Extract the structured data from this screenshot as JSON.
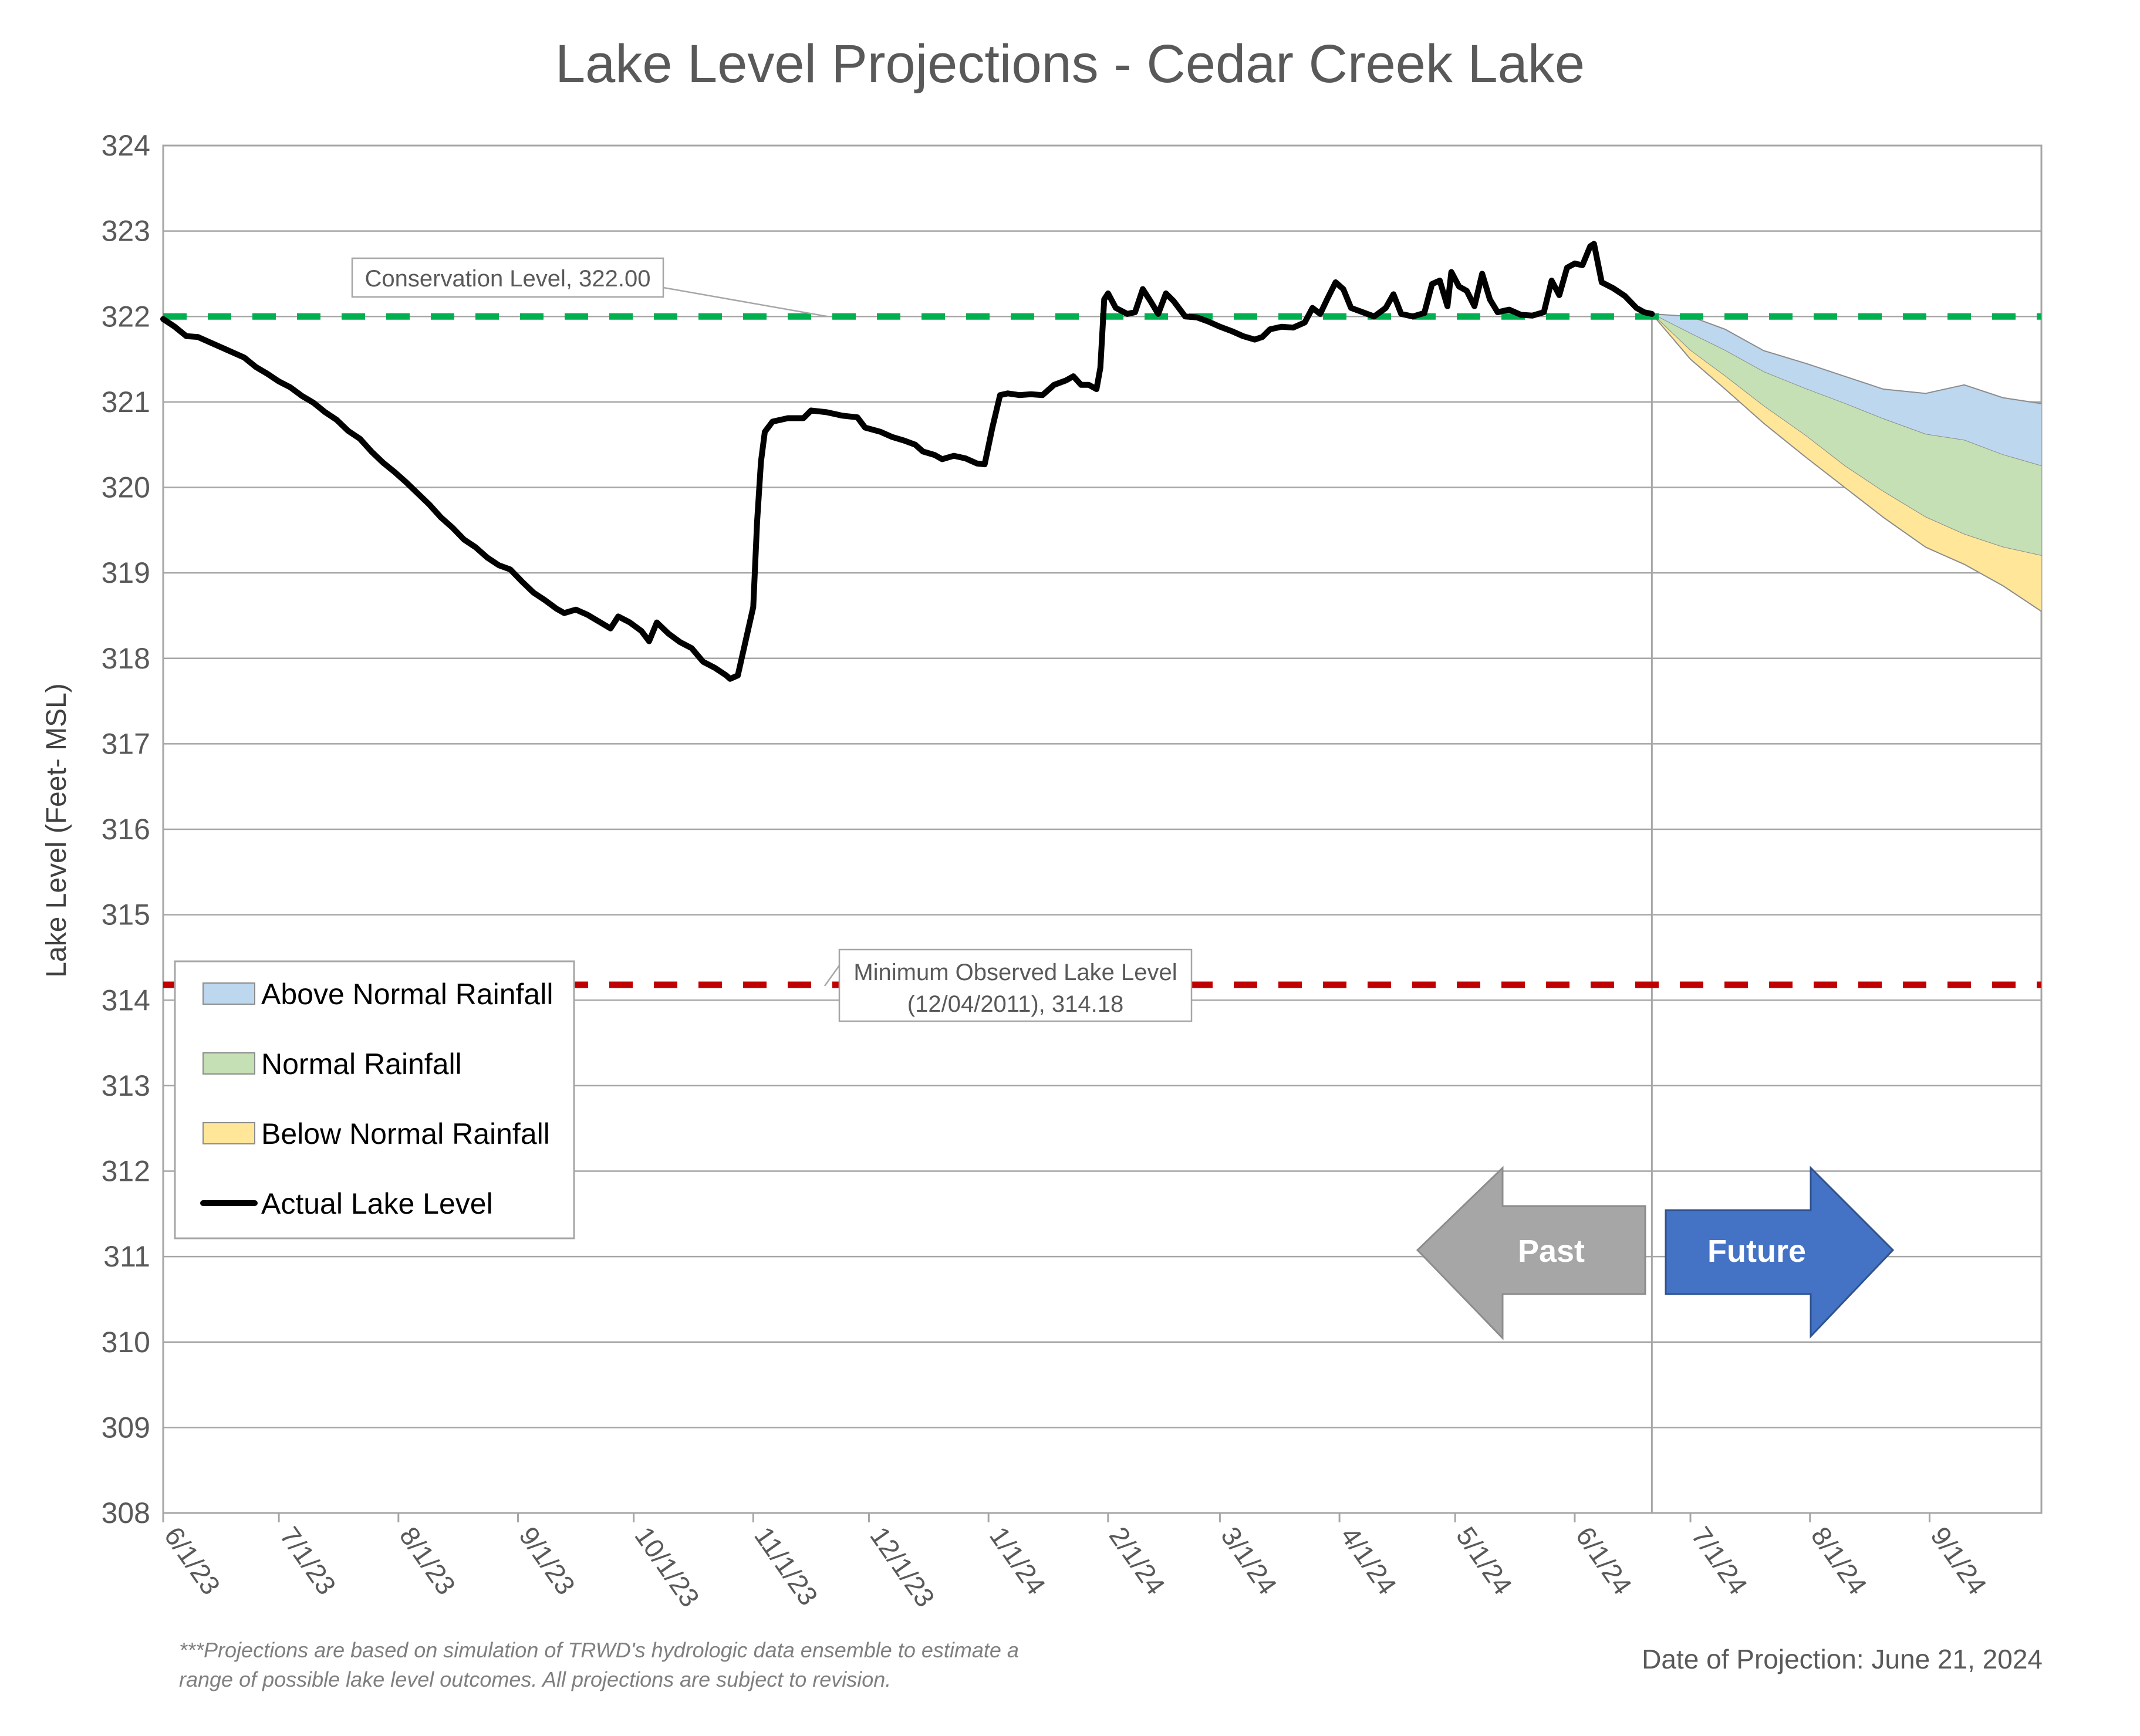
{
  "chart_data": {
    "type": "area",
    "title": "Lake Level Projections - Cedar Creek Lake",
    "ylabel": "Lake Level (Feet- MSL)",
    "xlabel": "",
    "ylim": [
      308,
      324
    ],
    "yticks": [
      "308",
      "309",
      "310",
      "311",
      "312",
      "313",
      "314",
      "315",
      "316",
      "317",
      "318",
      "319",
      "320",
      "321",
      "322",
      "323",
      "324"
    ],
    "x_range": [
      "2023-06-01",
      "2024-09-30"
    ],
    "xticks": [
      {
        "date": "2023-06-01",
        "label": "6/1/23"
      },
      {
        "date": "2023-07-01",
        "label": "7/1/23"
      },
      {
        "date": "2023-08-01",
        "label": "8/1/23"
      },
      {
        "date": "2023-09-01",
        "label": "9/1/23"
      },
      {
        "date": "2023-10-01",
        "label": "10/1/23"
      },
      {
        "date": "2023-11-01",
        "label": "11/1/23"
      },
      {
        "date": "2023-12-01",
        "label": "12/1/23"
      },
      {
        "date": "2024-01-01",
        "label": "1/1/24"
      },
      {
        "date": "2024-02-01",
        "label": "2/1/24"
      },
      {
        "date": "2024-03-01",
        "label": "3/1/24"
      },
      {
        "date": "2024-04-01",
        "label": "4/1/24"
      },
      {
        "date": "2024-05-01",
        "label": "5/1/24"
      },
      {
        "date": "2024-06-01",
        "label": "6/1/24"
      },
      {
        "date": "2024-07-01",
        "label": "7/1/24"
      },
      {
        "date": "2024-08-01",
        "label": "8/1/24"
      },
      {
        "date": "2024-09-01",
        "label": "9/1/24"
      }
    ],
    "grid": true,
    "reference_lines": [
      {
        "name": "Conservation Level",
        "value": 322.0,
        "color": "#00b050",
        "style": "dashed",
        "label": "Conservation Level, 322.00"
      },
      {
        "name": "Minimum Observed Lake Level",
        "value": 314.18,
        "color": "#c00000",
        "style": "dashed",
        "label_lines": [
          "Minimum Observed Lake Level",
          "(12/04/2011), 314.18"
        ]
      }
    ],
    "projection_date_marker": "2024-06-21",
    "actual_lake_level": {
      "name": "Actual Lake Level",
      "color": "#000000",
      "points": [
        [
          "2023-06-01",
          321.97
        ],
        [
          "2023-06-04",
          321.88
        ],
        [
          "2023-06-07",
          321.77
        ],
        [
          "2023-06-10",
          321.76
        ],
        [
          "2023-06-13",
          321.7
        ],
        [
          "2023-06-16",
          321.64
        ],
        [
          "2023-06-19",
          321.58
        ],
        [
          "2023-06-22",
          321.52
        ],
        [
          "2023-06-25",
          321.41
        ],
        [
          "2023-06-28",
          321.33
        ],
        [
          "2023-07-01",
          321.24
        ],
        [
          "2023-07-04",
          321.17
        ],
        [
          "2023-07-07",
          321.07
        ],
        [
          "2023-07-10",
          320.99
        ],
        [
          "2023-07-13",
          320.88
        ],
        [
          "2023-07-16",
          320.79
        ],
        [
          "2023-07-19",
          320.66
        ],
        [
          "2023-07-22",
          320.57
        ],
        [
          "2023-07-25",
          320.42
        ],
        [
          "2023-07-28",
          320.29
        ],
        [
          "2023-07-31",
          320.18
        ],
        [
          "2023-08-03",
          320.06
        ],
        [
          "2023-08-06",
          319.93
        ],
        [
          "2023-08-09",
          319.8
        ],
        [
          "2023-08-12",
          319.65
        ],
        [
          "2023-08-15",
          319.53
        ],
        [
          "2023-08-18",
          319.39
        ],
        [
          "2023-08-21",
          319.3
        ],
        [
          "2023-08-24",
          319.18
        ],
        [
          "2023-08-27",
          319.09
        ],
        [
          "2023-08-30",
          319.04
        ],
        [
          "2023-09-02",
          318.9
        ],
        [
          "2023-09-05",
          318.77
        ],
        [
          "2023-09-08",
          318.68
        ],
        [
          "2023-09-11",
          318.58
        ],
        [
          "2023-09-13",
          318.53
        ],
        [
          "2023-09-16",
          318.57
        ],
        [
          "2023-09-19",
          318.51
        ],
        [
          "2023-09-22",
          318.43
        ],
        [
          "2023-09-25",
          318.35
        ],
        [
          "2023-09-27",
          318.49
        ],
        [
          "2023-09-30",
          318.42
        ],
        [
          "2023-10-03",
          318.32
        ],
        [
          "2023-10-05",
          318.2
        ],
        [
          "2023-10-07",
          318.42
        ],
        [
          "2023-10-10",
          318.29
        ],
        [
          "2023-10-13",
          318.19
        ],
        [
          "2023-10-16",
          318.12
        ],
        [
          "2023-10-19",
          317.96
        ],
        [
          "2023-10-22",
          317.89
        ],
        [
          "2023-10-25",
          317.8
        ],
        [
          "2023-10-26",
          317.76
        ],
        [
          "2023-10-28",
          317.8
        ],
        [
          "2023-10-30",
          318.2
        ],
        [
          "2023-11-01",
          318.6
        ],
        [
          "2023-11-02",
          319.6
        ],
        [
          "2023-11-03",
          320.3
        ],
        [
          "2023-11-04",
          320.65
        ],
        [
          "2023-11-06",
          320.77
        ],
        [
          "2023-11-10",
          320.81
        ],
        [
          "2023-11-14",
          320.81
        ],
        [
          "2023-11-16",
          320.9
        ],
        [
          "2023-11-20",
          320.88
        ],
        [
          "2023-11-24",
          320.84
        ],
        [
          "2023-11-28",
          320.82
        ],
        [
          "2023-11-30",
          320.7
        ],
        [
          "2023-12-04",
          320.65
        ],
        [
          "2023-12-07",
          320.59
        ],
        [
          "2023-12-10",
          320.55
        ],
        [
          "2023-12-13",
          320.5
        ],
        [
          "2023-12-15",
          320.42
        ],
        [
          "2023-12-18",
          320.38
        ],
        [
          "2023-12-20",
          320.33
        ],
        [
          "2023-12-23",
          320.37
        ],
        [
          "2023-12-26",
          320.34
        ],
        [
          "2023-12-29",
          320.28
        ],
        [
          "2023-12-31",
          320.27
        ],
        [
          "2024-01-02",
          320.7
        ],
        [
          "2024-01-04",
          321.08
        ],
        [
          "2024-01-06",
          321.1
        ],
        [
          "2024-01-09",
          321.08
        ],
        [
          "2024-01-12",
          321.09
        ],
        [
          "2024-01-15",
          321.08
        ],
        [
          "2024-01-18",
          321.2
        ],
        [
          "2024-01-21",
          321.25
        ],
        [
          "2024-01-23",
          321.3
        ],
        [
          "2024-01-25",
          321.2
        ],
        [
          "2024-01-27",
          321.2
        ],
        [
          "2024-01-29",
          321.15
        ],
        [
          "2024-01-30",
          321.4
        ],
        [
          "2024-01-31",
          322.2
        ],
        [
          "2024-02-01",
          322.27
        ],
        [
          "2024-02-03",
          322.1
        ],
        [
          "2024-02-06",
          322.03
        ],
        [
          "2024-02-08",
          322.05
        ],
        [
          "2024-02-10",
          322.32
        ],
        [
          "2024-02-12",
          322.18
        ],
        [
          "2024-02-14",
          322.03
        ],
        [
          "2024-02-16",
          322.27
        ],
        [
          "2024-02-18",
          322.18
        ],
        [
          "2024-02-21",
          322.0
        ],
        [
          "2024-02-24",
          321.99
        ],
        [
          "2024-02-27",
          321.94
        ],
        [
          "2024-03-01",
          321.88
        ],
        [
          "2024-03-04",
          321.83
        ],
        [
          "2024-03-07",
          321.77
        ],
        [
          "2024-03-10",
          321.73
        ],
        [
          "2024-03-12",
          321.76
        ],
        [
          "2024-03-14",
          321.85
        ],
        [
          "2024-03-17",
          321.88
        ],
        [
          "2024-03-20",
          321.87
        ],
        [
          "2024-03-23",
          321.93
        ],
        [
          "2024-03-25",
          322.1
        ],
        [
          "2024-03-27",
          322.03
        ],
        [
          "2024-03-29",
          322.22
        ],
        [
          "2024-03-31",
          322.4
        ],
        [
          "2024-04-02",
          322.32
        ],
        [
          "2024-04-04",
          322.1
        ],
        [
          "2024-04-07",
          322.05
        ],
        [
          "2024-04-10",
          322.0
        ],
        [
          "2024-04-13",
          322.1
        ],
        [
          "2024-04-15",
          322.26
        ],
        [
          "2024-04-17",
          322.03
        ],
        [
          "2024-04-20",
          322.0
        ],
        [
          "2024-04-23",
          322.04
        ],
        [
          "2024-04-25",
          322.38
        ],
        [
          "2024-04-27",
          322.42
        ],
        [
          "2024-04-29",
          322.12
        ],
        [
          "2024-04-30",
          322.52
        ],
        [
          "2024-05-02",
          322.35
        ],
        [
          "2024-05-04",
          322.3
        ],
        [
          "2024-05-06",
          322.12
        ],
        [
          "2024-05-08",
          322.5
        ],
        [
          "2024-05-10",
          322.2
        ],
        [
          "2024-05-12",
          322.05
        ],
        [
          "2024-05-15",
          322.08
        ],
        [
          "2024-05-18",
          322.02
        ],
        [
          "2024-05-21",
          322.01
        ],
        [
          "2024-05-24",
          322.05
        ],
        [
          "2024-05-26",
          322.42
        ],
        [
          "2024-05-28",
          322.25
        ],
        [
          "2024-05-30",
          322.57
        ],
        [
          "2024-06-01",
          322.62
        ],
        [
          "2024-06-03",
          322.6
        ],
        [
          "2024-06-05",
          322.82
        ],
        [
          "2024-06-06",
          322.85
        ],
        [
          "2024-06-08",
          322.4
        ],
        [
          "2024-06-11",
          322.33
        ],
        [
          "2024-06-14",
          322.24
        ],
        [
          "2024-06-17",
          322.1
        ],
        [
          "2024-06-19",
          322.05
        ],
        [
          "2024-06-21",
          322.03
        ]
      ]
    },
    "projection_bands": [
      {
        "name": "Above Normal Rainfall",
        "color": "#bdd7ee",
        "upper": [
          [
            "2024-06-21",
            322.03
          ],
          [
            "2024-07-01",
            322.0
          ],
          [
            "2024-07-10",
            321.85
          ],
          [
            "2024-07-20",
            321.6
          ],
          [
            "2024-07-31",
            321.45
          ],
          [
            "2024-08-10",
            321.3
          ],
          [
            "2024-08-20",
            321.15
          ],
          [
            "2024-08-31",
            321.1
          ],
          [
            "2024-09-10",
            321.2
          ],
          [
            "2024-09-20",
            321.05
          ],
          [
            "2024-09-30",
            320.98
          ]
        ],
        "lower": [
          [
            "2024-06-21",
            322.03
          ],
          [
            "2024-07-01",
            321.8
          ],
          [
            "2024-07-10",
            321.6
          ],
          [
            "2024-07-20",
            321.35
          ],
          [
            "2024-07-31",
            321.15
          ],
          [
            "2024-08-10",
            320.98
          ],
          [
            "2024-08-20",
            320.8
          ],
          [
            "2024-08-31",
            320.62
          ],
          [
            "2024-09-10",
            320.55
          ],
          [
            "2024-09-20",
            320.38
          ],
          [
            "2024-09-30",
            320.25
          ]
        ]
      },
      {
        "name": "Normal Rainfall",
        "color": "#c5e0b4",
        "upper": [
          [
            "2024-06-21",
            322.03
          ],
          [
            "2024-07-01",
            321.8
          ],
          [
            "2024-07-10",
            321.6
          ],
          [
            "2024-07-20",
            321.35
          ],
          [
            "2024-07-31",
            321.15
          ],
          [
            "2024-08-10",
            320.98
          ],
          [
            "2024-08-20",
            320.8
          ],
          [
            "2024-08-31",
            320.62
          ],
          [
            "2024-09-10",
            320.55
          ],
          [
            "2024-09-20",
            320.38
          ],
          [
            "2024-09-30",
            320.25
          ]
        ],
        "lower": [
          [
            "2024-06-21",
            322.03
          ],
          [
            "2024-07-01",
            321.6
          ],
          [
            "2024-07-10",
            321.3
          ],
          [
            "2024-07-20",
            320.95
          ],
          [
            "2024-07-31",
            320.6
          ],
          [
            "2024-08-10",
            320.25
          ],
          [
            "2024-08-20",
            319.95
          ],
          [
            "2024-08-31",
            319.65
          ],
          [
            "2024-09-10",
            319.45
          ],
          [
            "2024-09-20",
            319.3
          ],
          [
            "2024-09-30",
            319.2
          ]
        ]
      },
      {
        "name": "Below Normal Rainfall",
        "color": "#ffe699",
        "upper": [
          [
            "2024-06-21",
            322.03
          ],
          [
            "2024-07-01",
            321.6
          ],
          [
            "2024-07-10",
            321.3
          ],
          [
            "2024-07-20",
            320.95
          ],
          [
            "2024-07-31",
            320.6
          ],
          [
            "2024-08-10",
            320.25
          ],
          [
            "2024-08-20",
            319.95
          ],
          [
            "2024-08-31",
            319.65
          ],
          [
            "2024-09-10",
            319.45
          ],
          [
            "2024-09-20",
            319.3
          ],
          [
            "2024-09-30",
            319.2
          ]
        ],
        "lower": [
          [
            "2024-06-21",
            322.03
          ],
          [
            "2024-07-01",
            321.5
          ],
          [
            "2024-07-10",
            321.15
          ],
          [
            "2024-07-20",
            320.75
          ],
          [
            "2024-07-31",
            320.35
          ],
          [
            "2024-08-10",
            320.0
          ],
          [
            "2024-08-20",
            319.65
          ],
          [
            "2024-08-31",
            319.3
          ],
          [
            "2024-09-10",
            319.1
          ],
          [
            "2024-09-20",
            318.85
          ],
          [
            "2024-09-30",
            318.55
          ]
        ]
      }
    ],
    "legend": {
      "placement": "bottom-left",
      "entries": [
        {
          "label": "Above Normal Rainfall",
          "kind": "area",
          "color": "#bdd7ee"
        },
        {
          "label": "Normal Rainfall",
          "kind": "area",
          "color": "#c5e0b4"
        },
        {
          "label": "Below Normal Rainfall",
          "kind": "area",
          "color": "#ffe699"
        },
        {
          "label": "Actual Lake Level",
          "kind": "line",
          "color": "#000000"
        }
      ]
    },
    "arrows": {
      "past": {
        "label": "Past",
        "color": "#a6a6a6"
      },
      "future": {
        "label": "Future",
        "color": "#4472c4"
      }
    },
    "footnote_lines": [
      "***Projections are based on simulation of TRWD's hydrologic data ensemble to estimate a",
      "range of possible lake level outcomes.  All projections are subject to revision."
    ],
    "projection_date_text": "Date of Projection: June 21, 2024"
  }
}
